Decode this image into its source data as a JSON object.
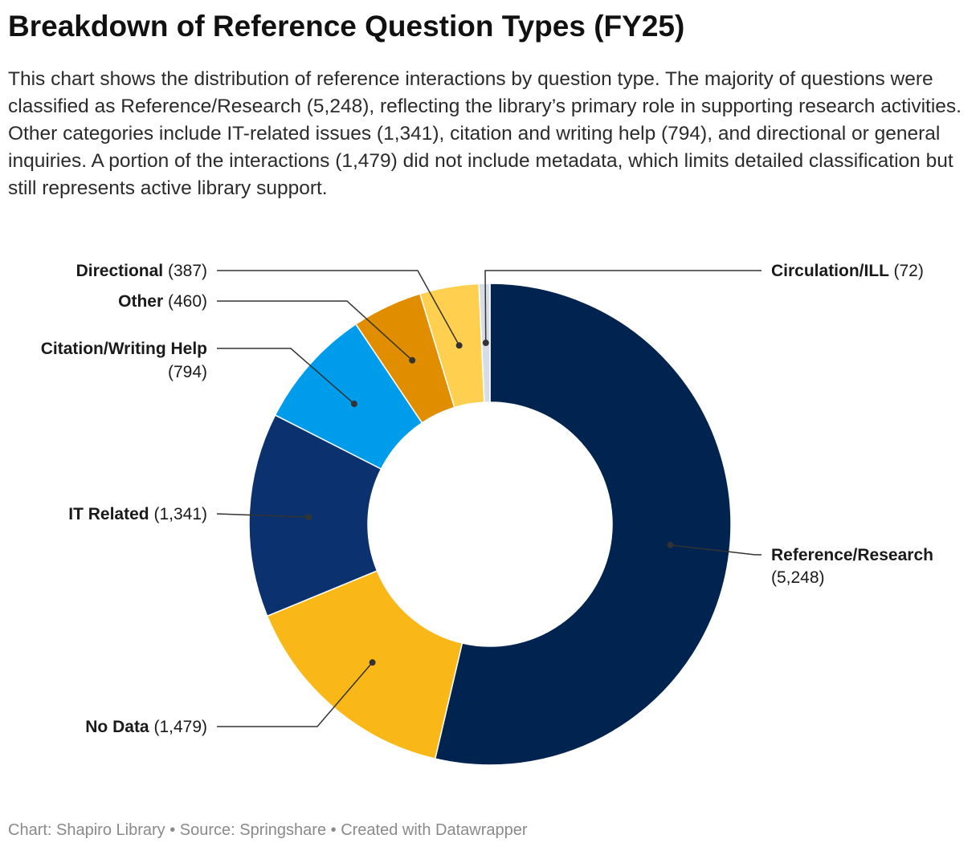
{
  "title": "Breakdown of Reference Question Types (FY25)",
  "description": "This chart shows the distribution of reference interactions by question type. The majority of questions were classified as Reference/Research (5,248), reflecting the library’s primary role in supporting research activities. Other categories include IT-related issues (1,341), citation and writing help (794), and directional or general inquiries. A portion of the interactions (1,479) did not include metadata, which limits detailed classification but still represents active library support.",
  "footer": "Chart: Shapiro Library • Source: Springshare • Created with Datawrapper",
  "chart_data": {
    "type": "pie",
    "variant": "donut",
    "slices": [
      {
        "name": "Reference/Research",
        "value": 5248,
        "value_label": "(5,248)",
        "color": "#00234f",
        "label_side": "right",
        "label_lines": [
          "Reference/Research",
          "(5,248)"
        ]
      },
      {
        "name": "No Data",
        "value": 1479,
        "value_label": "(1,479)",
        "color": "#fab818",
        "label_side": "left",
        "label_lines": [
          "No Data (1,479)"
        ]
      },
      {
        "name": "IT Related",
        "value": 1341,
        "value_label": "(1,341)",
        "color": "#0b326e",
        "label_side": "left",
        "label_lines": [
          "IT Related (1,341)"
        ]
      },
      {
        "name": "Citation/Writing Help",
        "value": 794,
        "value_label": "(794)",
        "color": "#009cec",
        "label_side": "left",
        "label_lines": [
          "Citation/Writing Help",
          "(794)"
        ]
      },
      {
        "name": "Other",
        "value": 460,
        "value_label": "(460)",
        "color": "#e08e00",
        "label_side": "left",
        "label_lines": [
          "Other (460)"
        ]
      },
      {
        "name": "Directional",
        "value": 387,
        "value_label": "(387)",
        "color": "#ffd050",
        "label_side": "left",
        "label_lines": [
          "Directional (387)"
        ]
      },
      {
        "name": "Circulation/ILL",
        "value": 72,
        "value_label": "(72)",
        "color": "#d6dde6",
        "label_side": "right",
        "label_lines": [
          "Circulation/ILL (72)"
        ]
      }
    ]
  }
}
